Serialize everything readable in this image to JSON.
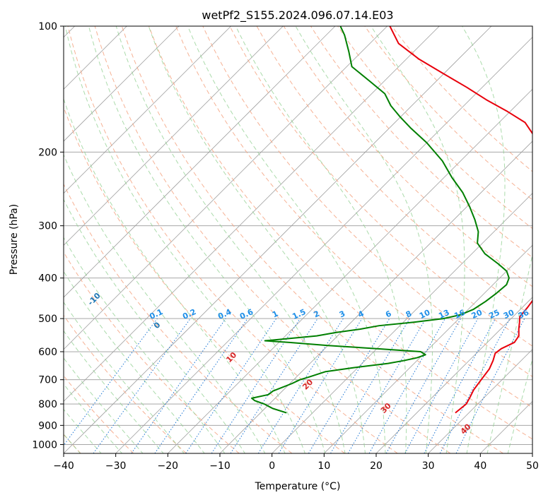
{
  "chart_data": {
    "type": "line",
    "title": "wetPf2_S155.2024.096.07.14.E03",
    "xlabel": "Temperature (°C)",
    "ylabel": "Pressure (hPa)",
    "xlim": [
      -40,
      50
    ],
    "ylim": [
      1050,
      100
    ],
    "yscale": "log",
    "skew_degrees": 45,
    "x_ticks": [
      -40,
      -30,
      -20,
      -10,
      0,
      10,
      20,
      30,
      40,
      50
    ],
    "y_ticks": [
      100,
      200,
      300,
      400,
      500,
      600,
      700,
      800,
      900,
      1000
    ],
    "grid": true,
    "series": [
      {
        "color": "#e8000b",
        "points": [
          [
            840,
            27.4
          ],
          [
            800,
            27.8
          ],
          [
            770,
            27.2
          ],
          [
            740,
            26.5
          ],
          [
            700,
            26.0
          ],
          [
            660,
            25.5
          ],
          [
            630,
            24.6
          ],
          [
            605,
            23.6
          ],
          [
            590,
            23.9
          ],
          [
            570,
            25.2
          ],
          [
            550,
            24.8
          ],
          [
            530,
            23.5
          ],
          [
            510,
            22.3
          ],
          [
            495,
            21.3
          ],
          [
            470,
            21.0
          ],
          [
            440,
            20.4
          ],
          [
            400,
            18.6
          ],
          [
            360,
            16.4
          ],
          [
            320,
            13.5
          ],
          [
            290,
            9.5
          ],
          [
            260,
            5.5
          ],
          [
            235,
            1.5
          ],
          [
            210,
            -3.0
          ],
          [
            190,
            -8.5
          ],
          [
            170,
            -15.0
          ],
          [
            160,
            -20.5
          ],
          [
            150,
            -26.8
          ],
          [
            140,
            -33.0
          ],
          [
            130,
            -40.0
          ],
          [
            120,
            -47.5
          ],
          [
            110,
            -54.5
          ],
          [
            100,
            -59.5
          ]
        ]
      },
      {
        "color": "#007f00",
        "points": [
          [
            840,
            -5.0
          ],
          [
            820,
            -8.5
          ],
          [
            800,
            -11.0
          ],
          [
            785,
            -13.5
          ],
          [
            775,
            -14.5
          ],
          [
            760,
            -12.0
          ],
          [
            745,
            -11.8
          ],
          [
            730,
            -10.7
          ],
          [
            715,
            -9.6
          ],
          [
            700,
            -8.8
          ],
          [
            690,
            -7.6
          ],
          [
            670,
            -5.5
          ],
          [
            655,
            -0.8
          ],
          [
            640,
            5.0
          ],
          [
            630,
            7.5
          ],
          [
            620,
            9.5
          ],
          [
            610,
            10.5
          ],
          [
            600,
            9.0
          ],
          [
            590,
            0.0
          ],
          [
            580,
            -10.0
          ],
          [
            570,
            -18.0
          ],
          [
            565,
            -23.0
          ],
          [
            560,
            -20.0
          ],
          [
            550,
            -14.0
          ],
          [
            540,
            -11.0
          ],
          [
            530,
            -7.0
          ],
          [
            520,
            -4.0
          ],
          [
            510,
            2.0
          ],
          [
            500,
            7.0
          ],
          [
            490,
            9.5
          ],
          [
            475,
            11.0
          ],
          [
            455,
            11.8
          ],
          [
            435,
            12.3
          ],
          [
            415,
            12.6
          ],
          [
            400,
            11.8
          ],
          [
            385,
            10.0
          ],
          [
            370,
            7.0
          ],
          [
            350,
            2.5
          ],
          [
            330,
            -1.0
          ],
          [
            310,
            -3.0
          ],
          [
            290,
            -6.0
          ],
          [
            270,
            -9.5
          ],
          [
            250,
            -13.5
          ],
          [
            230,
            -18.5
          ],
          [
            210,
            -23.5
          ],
          [
            190,
            -30.0
          ],
          [
            175,
            -36.0
          ],
          [
            165,
            -40.0
          ],
          [
            155,
            -44.0
          ],
          [
            145,
            -47.5
          ],
          [
            135,
            -53.0
          ],
          [
            125,
            -59.0
          ],
          [
            115,
            -62.5
          ],
          [
            105,
            -66.5
          ],
          [
            100,
            -69.0
          ]
        ]
      }
    ],
    "dry_adiabats": [
      -100,
      -90,
      -80,
      -70,
      -60,
      -50,
      -40,
      -30,
      -20,
      -10,
      0,
      10,
      20,
      30,
      40
    ],
    "mixing_ratios": [
      "0.1",
      "0.2",
      "0.4",
      "0.6",
      "1",
      "1.5",
      "2",
      "3",
      "4",
      "6",
      "8",
      "10",
      "13",
      "16",
      "20",
      "25",
      "30",
      "36"
    ],
    "colors": {
      "temperature": "#e8000b",
      "dewpoint": "#007f00",
      "dry_adiabat_line": "#f4a582",
      "moist_adiabat_line": "#8fcf8f",
      "mixing_ratio_line": "#1f77d4",
      "mixing_label": "#1f8fe8",
      "adiabat_label_cold": "#1f77b4",
      "adiabat_label_warm": "#d62728",
      "isotherm": "#888888",
      "isobar": "#9a9a9a",
      "wet_bulb_curve": "#d2b48c"
    }
  }
}
